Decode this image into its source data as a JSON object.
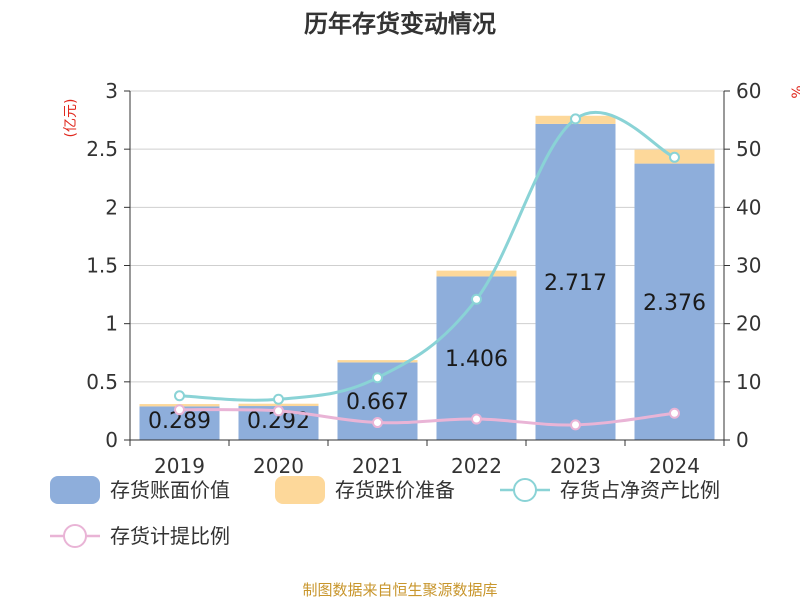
{
  "chart_data": {
    "type": "bar",
    "title": "历年存货变动情况",
    "categories": [
      "2019",
      "2020",
      "2021",
      "2022",
      "2023",
      "2024"
    ],
    "left_axis": {
      "unit": "(亿元)",
      "ylim": [
        0,
        3
      ],
      "ticks": [
        "0",
        "0.5",
        "1",
        "1.5",
        "2",
        "2.5",
        "3"
      ]
    },
    "right_axis": {
      "unit": "%",
      "ylim": [
        0,
        60
      ],
      "ticks": [
        "0",
        "10",
        "20",
        "30",
        "40",
        "50",
        "60"
      ]
    },
    "series": [
      {
        "name": "存货账面价值",
        "type": "bar",
        "axis": "left",
        "stack": "inv",
        "color": "#8eaedb",
        "values": [
          0.289,
          0.292,
          0.667,
          1.406,
          2.717,
          2.376
        ],
        "labels": [
          "0.289",
          "0.292",
          "0.667",
          "1.406",
          "2.717",
          "2.376"
        ]
      },
      {
        "name": "存货跌价准备",
        "type": "bar",
        "axis": "left",
        "stack": "inv",
        "color": "#fdd89a",
        "values": [
          0.02,
          0.02,
          0.02,
          0.05,
          0.07,
          0.12
        ]
      },
      {
        "name": "存货占净资产比例",
        "type": "line",
        "axis": "right",
        "color": "#8ad3d6",
        "values": [
          7.6,
          7.0,
          10.7,
          24.2,
          55.2,
          48.6
        ]
      },
      {
        "name": "存货计提比例",
        "type": "line",
        "axis": "right",
        "color": "#e9b4d6",
        "values": [
          5.2,
          5.0,
          3.0,
          3.6,
          2.6,
          4.6
        ]
      }
    ],
    "grid": true,
    "legend": "bottom"
  },
  "source_note": "制图数据来自恒生聚源数据库"
}
